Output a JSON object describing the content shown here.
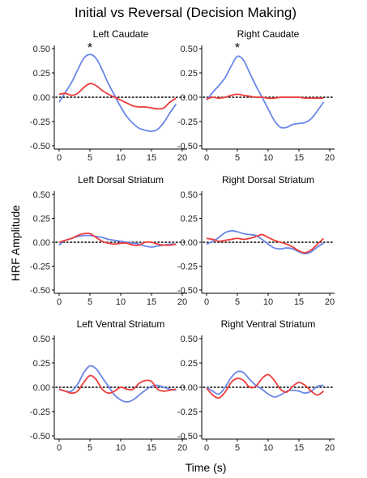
{
  "colors": {
    "initial": "#6A86E8",
    "reversal": "#EE3B3B",
    "zero_line": "#000000",
    "axis": "#000000"
  },
  "chart_data": {
    "type": "line",
    "title": "Initial vs Reversal (Decision Making)",
    "xlabel": "Time (s)",
    "ylabel": "HRF Amplitude",
    "xlim": [
      0,
      20
    ],
    "ylim": [
      -0.5,
      0.5
    ],
    "x_ticks": [
      0,
      5,
      10,
      15,
      20
    ],
    "y_ticks": [
      0.5,
      0.25,
      0.0,
      -0.25,
      -0.5
    ],
    "x_tick_labels": [
      "0",
      "5",
      "10",
      "15",
      "20"
    ],
    "y_tick_labels": [
      "0.50",
      "0.25",
      "0.00",
      "-0.25",
      "-0.50"
    ],
    "grid": false,
    "zero_reference_line": "dotted",
    "panels": [
      {
        "title": "Left Caudate",
        "annotation": {
          "text": "*",
          "x": 5
        },
        "series": [
          {
            "color_key": "initial",
            "x": [
              0,
              1,
              2,
              3,
              4,
              5,
              6,
              7,
              8,
              9,
              10,
              11,
              12,
              13,
              14,
              15,
              16,
              17,
              18,
              19
            ],
            "values": [
              -0.05,
              0.05,
              0.15,
              0.28,
              0.4,
              0.44,
              0.4,
              0.28,
              0.14,
              0.02,
              -0.1,
              -0.2,
              -0.27,
              -0.32,
              -0.34,
              -0.35,
              -0.33,
              -0.26,
              -0.16,
              -0.07
            ]
          },
          {
            "color_key": "reversal",
            "x": [
              0,
              1,
              2,
              3,
              4,
              5,
              6,
              7,
              8,
              9,
              10,
              11,
              12,
              13,
              14,
              15,
              16,
              17,
              18,
              19
            ],
            "values": [
              0.03,
              0.04,
              0.02,
              0.04,
              0.1,
              0.14,
              0.12,
              0.07,
              0.03,
              0.0,
              -0.03,
              -0.06,
              -0.09,
              -0.1,
              -0.1,
              -0.11,
              -0.12,
              -0.11,
              -0.05,
              -0.01
            ]
          }
        ]
      },
      {
        "title": "Right Caudate",
        "annotation": {
          "text": "*",
          "x": 5
        },
        "series": [
          {
            "color_key": "initial",
            "x": [
              0,
              1,
              2,
              3,
              4,
              5,
              6,
              7,
              8,
              9,
              10,
              11,
              12,
              13,
              14,
              15,
              16,
              17,
              18,
              19
            ],
            "values": [
              -0.03,
              0.05,
              0.12,
              0.2,
              0.32,
              0.42,
              0.38,
              0.25,
              0.12,
              0.0,
              -0.12,
              -0.24,
              -0.31,
              -0.31,
              -0.28,
              -0.27,
              -0.26,
              -0.22,
              -0.14,
              -0.05
            ]
          },
          {
            "color_key": "reversal",
            "x": [
              0,
              1,
              2,
              3,
              4,
              5,
              6,
              7,
              8,
              9,
              10,
              11,
              12,
              13,
              14,
              15,
              16,
              17,
              18,
              19
            ],
            "values": [
              -0.02,
              0.0,
              -0.01,
              0.0,
              0.02,
              0.03,
              0.02,
              0.01,
              0.0,
              0.0,
              -0.01,
              -0.01,
              0.0,
              0.0,
              0.0,
              0.0,
              -0.01,
              -0.01,
              -0.01,
              -0.01
            ]
          }
        ]
      },
      {
        "title": "Left Dorsal Striatum",
        "annotation": null,
        "series": [
          {
            "color_key": "initial",
            "x": [
              0,
              1,
              2,
              3,
              4,
              5,
              6,
              7,
              8,
              9,
              10,
              11,
              12,
              13,
              14,
              15,
              16,
              17,
              18,
              19
            ],
            "values": [
              -0.03,
              0.02,
              0.04,
              0.06,
              0.07,
              0.07,
              0.06,
              0.05,
              0.03,
              0.02,
              0.01,
              0.0,
              -0.01,
              -0.02,
              -0.04,
              -0.05,
              -0.04,
              -0.03,
              -0.02,
              -0.02
            ]
          },
          {
            "color_key": "reversal",
            "x": [
              0,
              1,
              2,
              3,
              4,
              5,
              6,
              7,
              8,
              9,
              10,
              11,
              12,
              13,
              14,
              15,
              16,
              17,
              18,
              19
            ],
            "values": [
              0.0,
              0.02,
              0.04,
              0.07,
              0.09,
              0.09,
              0.05,
              0.01,
              -0.01,
              -0.02,
              -0.01,
              -0.01,
              -0.03,
              -0.03,
              0.0,
              0.0,
              -0.02,
              -0.03,
              -0.03,
              -0.02
            ]
          }
        ]
      },
      {
        "title": "Right Dorsal Striatum",
        "annotation": null,
        "series": [
          {
            "color_key": "initial",
            "x": [
              0,
              1,
              2,
              3,
              4,
              5,
              6,
              7,
              8,
              9,
              10,
              11,
              12,
              13,
              14,
              15,
              16,
              17,
              18,
              19
            ],
            "values": [
              -0.02,
              0.01,
              0.05,
              0.1,
              0.12,
              0.11,
              0.09,
              0.08,
              0.07,
              0.03,
              -0.02,
              -0.06,
              -0.07,
              -0.06,
              -0.07,
              -0.1,
              -0.12,
              -0.1,
              -0.05,
              -0.01
            ]
          },
          {
            "color_key": "reversal",
            "x": [
              0,
              1,
              2,
              3,
              4,
              5,
              6,
              7,
              8,
              9,
              10,
              11,
              12,
              13,
              14,
              15,
              16,
              17,
              18,
              19
            ],
            "values": [
              0.04,
              0.03,
              0.01,
              0.02,
              0.03,
              0.04,
              0.03,
              0.04,
              0.06,
              0.08,
              0.05,
              0.02,
              0.0,
              -0.02,
              -0.05,
              -0.09,
              -0.11,
              -0.08,
              -0.02,
              0.04
            ]
          }
        ]
      },
      {
        "title": "Left Ventral Striatum",
        "annotation": null,
        "series": [
          {
            "color_key": "initial",
            "x": [
              0,
              1,
              2,
              3,
              4,
              5,
              6,
              7,
              8,
              9,
              10,
              11,
              12,
              13,
              14,
              15,
              16,
              17,
              18,
              19
            ],
            "values": [
              -0.02,
              -0.04,
              -0.04,
              0.03,
              0.15,
              0.22,
              0.19,
              0.1,
              0.01,
              -0.08,
              -0.13,
              -0.15,
              -0.13,
              -0.08,
              -0.03,
              0.01,
              0.02,
              0.0,
              -0.02,
              -0.03
            ]
          },
          {
            "color_key": "reversal",
            "x": [
              0,
              1,
              2,
              3,
              4,
              5,
              6,
              7,
              8,
              9,
              10,
              11,
              12,
              13,
              14,
              15,
              16,
              17,
              18,
              19
            ],
            "values": [
              -0.02,
              -0.04,
              -0.06,
              -0.04,
              0.05,
              0.12,
              0.08,
              -0.02,
              -0.06,
              -0.04,
              0.0,
              -0.02,
              -0.02,
              0.04,
              0.07,
              0.06,
              -0.02,
              -0.04,
              -0.03,
              -0.02
            ]
          }
        ]
      },
      {
        "title": "Right Ventral Striatum",
        "annotation": null,
        "series": [
          {
            "color_key": "initial",
            "x": [
              0,
              1,
              2,
              3,
              4,
              5,
              6,
              7,
              8,
              9,
              10,
              11,
              12,
              13,
              14,
              15,
              16,
              17,
              18,
              19
            ],
            "values": [
              0.0,
              -0.04,
              -0.07,
              0.0,
              0.1,
              0.16,
              0.15,
              0.08,
              0.02,
              -0.02,
              -0.07,
              -0.1,
              -0.08,
              -0.04,
              -0.03,
              -0.04,
              -0.06,
              -0.04,
              0.01,
              0.02
            ]
          },
          {
            "color_key": "reversal",
            "x": [
              0,
              1,
              2,
              3,
              4,
              5,
              6,
              7,
              8,
              9,
              10,
              11,
              12,
              13,
              14,
              15,
              16,
              17,
              18,
              19
            ],
            "values": [
              -0.01,
              -0.08,
              -0.11,
              -0.05,
              0.05,
              0.09,
              0.07,
              0.0,
              0.01,
              0.09,
              0.13,
              0.07,
              -0.02,
              -0.05,
              0.01,
              0.05,
              0.02,
              -0.04,
              -0.08,
              -0.04
            ]
          }
        ]
      }
    ]
  }
}
